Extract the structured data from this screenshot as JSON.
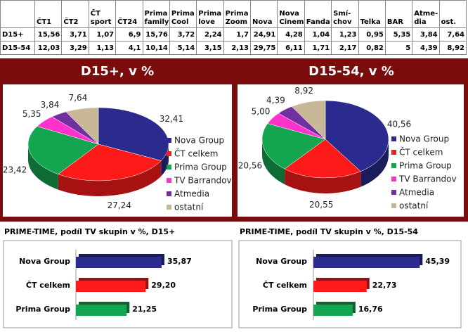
{
  "table": {
    "columns": [
      "ČT1",
      "ČT2",
      "ČT sport",
      "ČT24",
      "Prima family",
      "Prima Cool",
      "Prima love",
      "Prima Zoom",
      "Nova",
      "Nova Cinema",
      "Fanda",
      "Smí-chov",
      "Telka",
      "BAR",
      "Atme-dia",
      "ost."
    ],
    "rows": [
      {
        "label": "D15+",
        "values": [
          "15,56",
          "3,71",
          "1,07",
          "6,9",
          "15,76",
          "3,72",
          "2,24",
          "1,7",
          "24,91",
          "4,28",
          "1,04",
          "1,23",
          "0,95",
          "5,35",
          "3,84",
          "7,64"
        ]
      },
      {
        "label": "D15-54",
        "values": [
          "12,03",
          "3,29",
          "1,13",
          "4,1",
          "10,14",
          "5,14",
          "3,15",
          "2,13",
          "29,75",
          "6,11",
          "1,71",
          "2,17",
          "0,82",
          "5",
          "4,39",
          "8,92"
        ]
      }
    ]
  },
  "chart_data": [
    {
      "type": "pie",
      "title": "D15+, v %",
      "legend": "right",
      "categories": [
        "Nova Group",
        "ČT celkem",
        "Prima Group",
        "TV Barrandov",
        "Atmedia",
        "ostatní"
      ],
      "values": [
        32.41,
        27.24,
        23.42,
        5.35,
        3.84,
        7.64
      ],
      "value_labels": [
        "32,41",
        "27,24",
        "23,42",
        "5,35",
        "3,84",
        "7,64"
      ],
      "colors": [
        "#2b2b8f",
        "#ff1a1a",
        "#14a550",
        "#ff33cc",
        "#7030a0",
        "#c8b898"
      ]
    },
    {
      "type": "pie",
      "title": "D15-54, v %",
      "legend": "right",
      "categories": [
        "Nova Group",
        "ČT celkem",
        "Prima Group",
        "TV Barrandov",
        "Atmedia",
        "ostatní"
      ],
      "values": [
        40.56,
        20.55,
        20.56,
        5.0,
        4.39,
        8.92
      ],
      "value_labels": [
        "40,56",
        "20,55",
        "20,56",
        "5,00",
        "4,39",
        "8,92"
      ],
      "colors": [
        "#2b2b8f",
        "#ff1a1a",
        "#14a550",
        "#ff33cc",
        "#7030a0",
        "#c8b898"
      ]
    },
    {
      "type": "bar",
      "orientation": "horizontal",
      "title": "PRIME-TIME, podíl TV skupin v %, D15+",
      "categories": [
        "Nova Group",
        "ČT celkem",
        "Prima Group"
      ],
      "values": [
        35.87,
        29.2,
        21.25
      ],
      "value_labels": [
        "35,87",
        "29,20",
        "21,25"
      ],
      "colors": [
        "#2b2b8f",
        "#ff1a1a",
        "#14a550"
      ],
      "xlim": [
        0,
        60
      ]
    },
    {
      "type": "bar",
      "orientation": "horizontal",
      "title": "PRIME-TIME, podíl TV skupin v %, D15-54",
      "categories": [
        "Nova Group",
        "ČT celkem",
        "Prima Group"
      ],
      "values": [
        45.39,
        22.73,
        16.76
      ],
      "value_labels": [
        "45,39",
        "22,73",
        "16,76"
      ],
      "colors": [
        "#2b2b8f",
        "#ff1a1a",
        "#14a550"
      ],
      "xlim": [
        0,
        60
      ]
    }
  ]
}
